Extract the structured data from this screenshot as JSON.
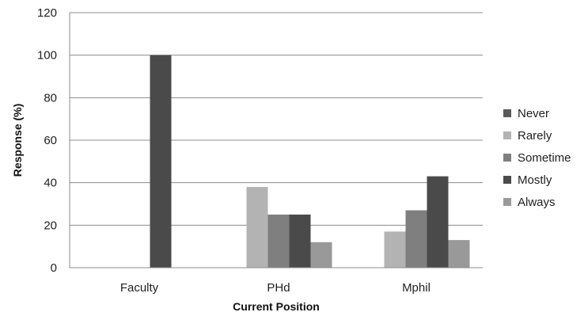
{
  "chart_data": {
    "type": "bar",
    "title": "",
    "xlabel": "Current Position",
    "ylabel": "Response (%)",
    "categories": [
      "Faculty",
      "PHd",
      "Mphil"
    ],
    "ylim": [
      0,
      120
    ],
    "yticks": [
      0,
      20,
      40,
      60,
      80,
      100,
      120
    ],
    "grid": true,
    "legend_position": "right",
    "series": [
      {
        "name": "Never",
        "values": [
          0,
          0,
          0
        ],
        "color": "#5a5a5a"
      },
      {
        "name": "Rarely",
        "values": [
          0,
          38,
          17
        ],
        "color": "#b3b3b3"
      },
      {
        "name": "Sometime",
        "values": [
          0,
          25,
          27
        ],
        "color": "#7f7f7f"
      },
      {
        "name": "Mostly",
        "values": [
          100,
          25,
          43
        ],
        "color": "#4a4a4a"
      },
      {
        "name": "Always",
        "values": [
          0,
          12,
          13
        ],
        "color": "#999999"
      }
    ]
  }
}
